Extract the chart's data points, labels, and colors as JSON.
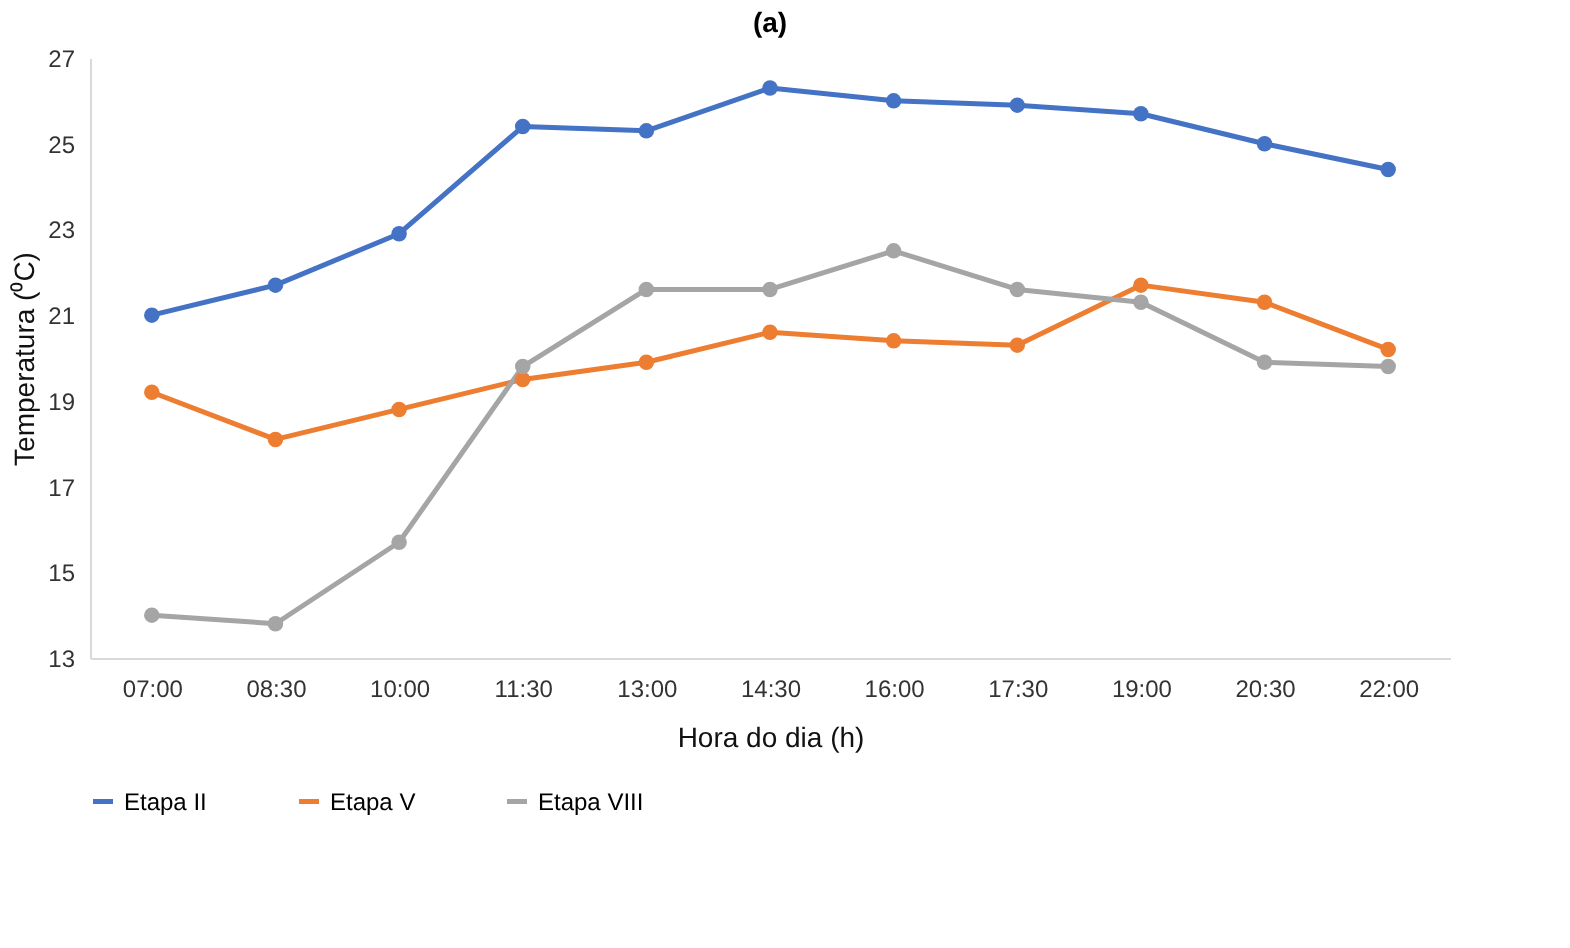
{
  "chart_data": {
    "type": "line",
    "title": "(a)",
    "xlabel": "Hora do dia (h)",
    "ylabel": "Temperatura (⁰C)",
    "categories": [
      "07:00",
      "08:30",
      "10:00",
      "11:30",
      "13:00",
      "14:30",
      "16:00",
      "17:30",
      "19:00",
      "20:30",
      "22:00"
    ],
    "series": [
      {
        "name": "Etapa II",
        "color": "#4472c4",
        "values": [
          21.0,
          21.7,
          22.9,
          25.4,
          25.3,
          26.3,
          26.0,
          25.9,
          25.7,
          25.0,
          24.4
        ]
      },
      {
        "name": "Etapa V",
        "color": "#ed7d31",
        "values": [
          19.2,
          18.1,
          18.8,
          19.5,
          19.9,
          20.6,
          20.4,
          20.3,
          21.7,
          21.3,
          20.2
        ]
      },
      {
        "name": "Etapa VIII",
        "color": "#a5a5a5",
        "values": [
          14.0,
          13.8,
          15.7,
          19.8,
          21.6,
          21.6,
          22.5,
          21.6,
          21.3,
          19.9,
          19.8
        ]
      }
    ],
    "ylim": [
      13,
      27
    ],
    "yticks": [
      13,
      15,
      17,
      19,
      21,
      23,
      25,
      27
    ],
    "grid": false,
    "legend": "bottom",
    "marker": "circle",
    "line_style": "solid"
  }
}
